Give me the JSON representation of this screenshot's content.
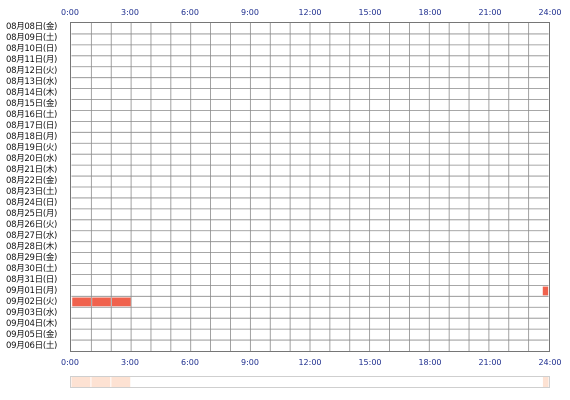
{
  "timeline": {
    "hour_labels": [
      "0:00",
      "3:00",
      "6:00",
      "9:00",
      "12:00",
      "15:00",
      "18:00",
      "21:00",
      "24:00"
    ],
    "days": [
      "08月08日(金)",
      "08月09日(土)",
      "08月10日(日)",
      "08月11日(月)",
      "08月12日(火)",
      "08月13日(水)",
      "08月14日(木)",
      "08月15日(金)",
      "08月16日(土)",
      "08月17日(日)",
      "08月18日(月)",
      "08月19日(火)",
      "08月20日(水)",
      "08月21日(木)",
      "08月22日(金)",
      "08月23日(土)",
      "08月24日(日)",
      "08月25日(月)",
      "08月26日(火)",
      "08月27日(水)",
      "08月28日(木)",
      "08月29日(金)",
      "08月30日(土)",
      "08月31日(日)",
      "09月01日(月)",
      "09月02日(火)",
      "09月03日(水)",
      "09月04日(木)",
      "09月05日(金)",
      "09月06日(土)"
    ],
    "activity": [
      {
        "day": "09月01日(月)",
        "start_hour": 23.67,
        "end_hour": 24.0
      },
      {
        "day": "09月02日(火)",
        "start_hour": 0.0,
        "end_hour": 3.0
      }
    ],
    "colors": {
      "activity": "#f0624d",
      "summary": "#fde2d3",
      "grid_line": "#8a8a8a",
      "label": "#1f2f8f"
    }
  }
}
